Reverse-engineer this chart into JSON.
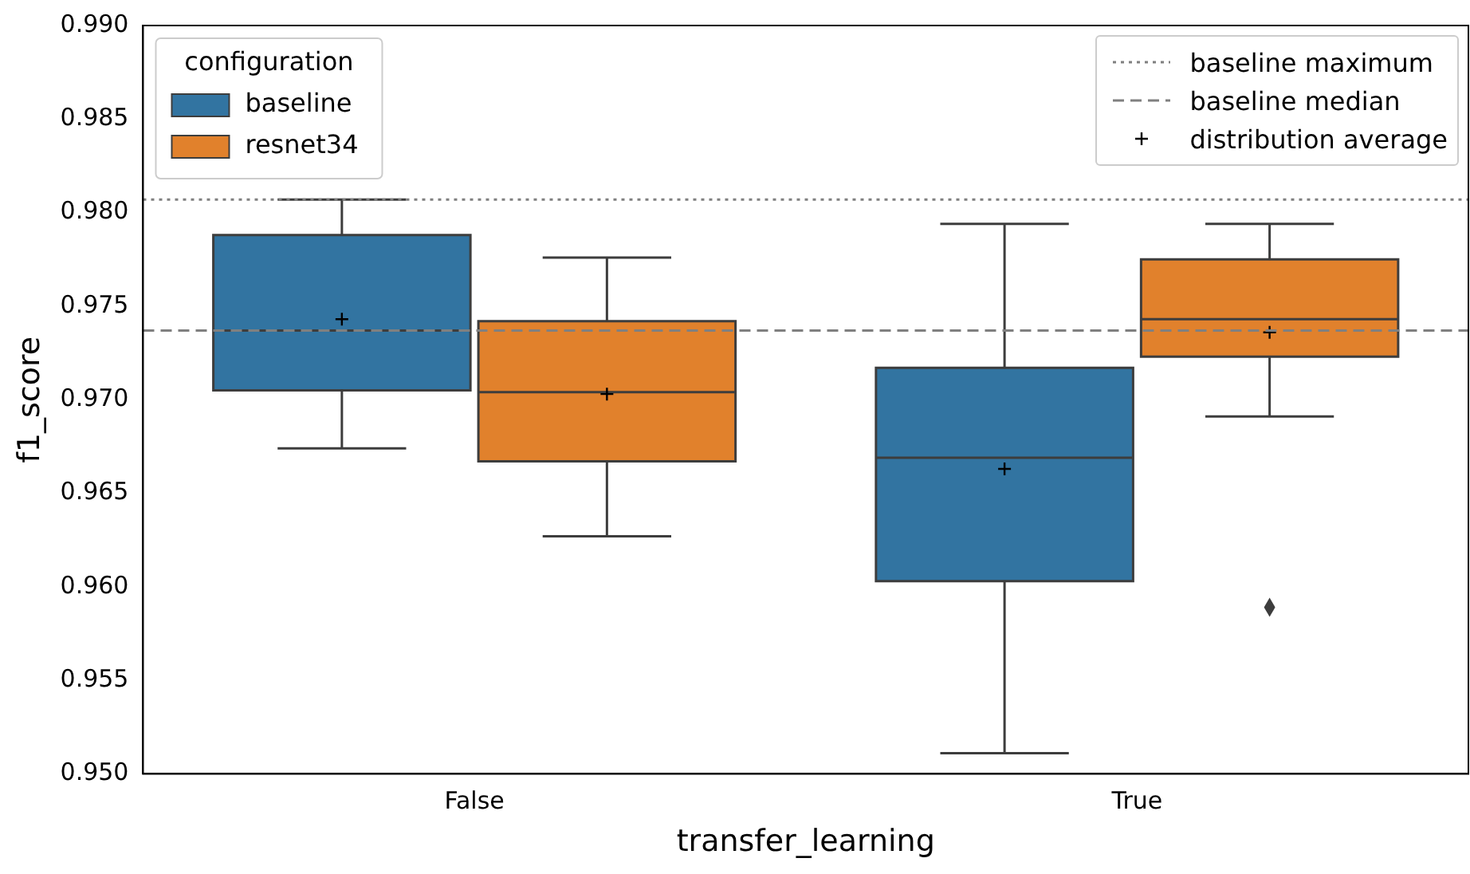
{
  "chart_data": {
    "type": "box",
    "xlabel": "transfer_learning",
    "ylabel": "f1_score",
    "legend_title": "configuration",
    "legend": "top left",
    "grid": false,
    "categories": [
      "False",
      "True"
    ],
    "ylim": [
      0.95,
      0.99
    ],
    "yticks": [
      {
        "value": 0.95,
        "label": "0.950"
      },
      {
        "value": 0.955,
        "label": "0.955"
      },
      {
        "value": 0.96,
        "label": "0.960"
      },
      {
        "value": 0.965,
        "label": "0.965"
      },
      {
        "value": 0.97,
        "label": "0.970"
      },
      {
        "value": 0.975,
        "label": "0.975"
      },
      {
        "value": 0.98,
        "label": "0.980"
      },
      {
        "value": 0.985,
        "label": "0.985"
      },
      {
        "value": 0.99,
        "label": "0.990"
      }
    ],
    "series": [
      {
        "name": "baseline",
        "color": "#3274a1",
        "boxes": [
          {
            "low": 0.9674,
            "q1": 0.9705,
            "median": 0.9737,
            "q3": 0.9788,
            "high": 0.9807,
            "mean": 0.9743
          },
          {
            "low": 0.9511,
            "q1": 0.9603,
            "median": 0.9669,
            "q3": 0.9717,
            "high": 0.9794,
            "mean": 0.9663
          }
        ]
      },
      {
        "name": "resnet34",
        "color": "#e1812c",
        "boxes": [
          {
            "low": 0.9627,
            "q1": 0.9667,
            "median": 0.9704,
            "q3": 0.9742,
            "high": 0.9776,
            "mean": 0.9703
          },
          {
            "low": 0.9691,
            "q1": 0.9723,
            "median": 0.9743,
            "q3": 0.9775,
            "high": 0.9794,
            "mean": 0.9736,
            "outliers": [
              0.9589
            ]
          }
        ]
      }
    ],
    "ref_lines": [
      {
        "axis": "y",
        "value": 0.9807,
        "label": "baseline maximum",
        "line_style": "dotted",
        "color": "#808080"
      },
      {
        "axis": "y",
        "value": 0.9737,
        "label": "baseline median",
        "line_style": "dashed",
        "color": "#808080"
      }
    ],
    "annotations": [
      "distribution average"
    ]
  }
}
